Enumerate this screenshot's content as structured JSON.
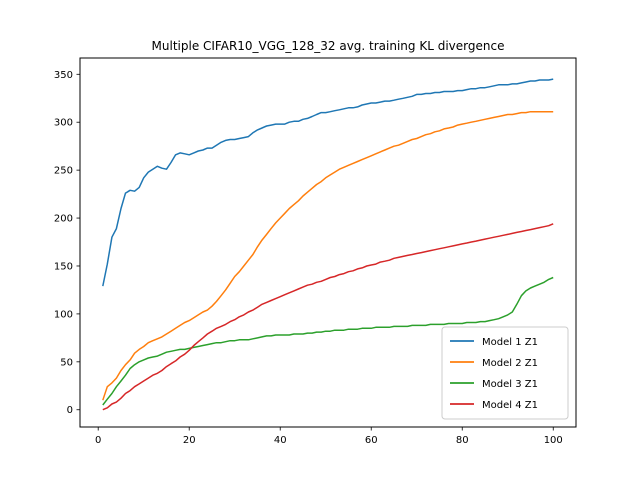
{
  "chart_data": {
    "type": "line",
    "title": "Multiple CIFAR10_VGG_128_32 avg. training KL divergence",
    "xlabel": "",
    "ylabel": "",
    "xlim": [
      -4,
      105
    ],
    "ylim": [
      -18,
      367
    ],
    "xticks": [
      0,
      20,
      40,
      60,
      80,
      100
    ],
    "yticks": [
      0,
      50,
      100,
      150,
      200,
      250,
      300,
      350
    ],
    "grid": false,
    "legend_position": "lower right",
    "series": [
      {
        "name": "Model 1 Z1",
        "color": "#1f77b4",
        "x": [
          1,
          2,
          3,
          4,
          5,
          6,
          7,
          8,
          9,
          10,
          11,
          12,
          13,
          14,
          15,
          16,
          17,
          18,
          19,
          20,
          21,
          22,
          23,
          24,
          25,
          26,
          27,
          28,
          29,
          30,
          31,
          32,
          33,
          34,
          35,
          36,
          37,
          38,
          39,
          40,
          41,
          42,
          43,
          44,
          45,
          46,
          47,
          48,
          49,
          50,
          51,
          52,
          53,
          54,
          55,
          56,
          57,
          58,
          59,
          60,
          61,
          62,
          63,
          64,
          65,
          66,
          67,
          68,
          69,
          70,
          71,
          72,
          73,
          74,
          75,
          76,
          77,
          78,
          79,
          80,
          81,
          82,
          83,
          84,
          85,
          86,
          87,
          88,
          89,
          90,
          91,
          92,
          93,
          94,
          95,
          96,
          97,
          98,
          99,
          100
        ],
        "values": [
          129,
          152,
          180,
          189,
          210,
          226,
          229,
          228,
          232,
          242,
          248,
          251,
          254,
          252,
          251,
          258,
          266,
          268,
          267,
          266,
          268,
          270,
          271,
          273,
          273,
          276,
          279,
          281,
          282,
          282,
          283,
          284,
          285,
          289,
          292,
          294,
          296,
          297,
          298,
          298,
          298,
          300,
          301,
          301,
          303,
          304,
          306,
          308,
          310,
          310,
          311,
          312,
          313,
          314,
          315,
          315,
          316,
          318,
          319,
          320,
          320,
          321,
          322,
          322,
          323,
          324,
          325,
          326,
          327,
          329,
          329,
          330,
          330,
          331,
          331,
          332,
          332,
          332,
          333,
          333,
          334,
          335,
          335,
          336,
          336,
          337,
          338,
          339,
          339,
          339,
          340,
          340,
          341,
          342,
          343,
          343,
          344,
          344,
          344,
          345
        ]
      },
      {
        "name": "Model 2 Z1",
        "color": "#ff7f0e",
        "x": [
          1,
          2,
          3,
          4,
          5,
          6,
          7,
          8,
          9,
          10,
          11,
          12,
          13,
          14,
          15,
          16,
          17,
          18,
          19,
          20,
          21,
          22,
          23,
          24,
          25,
          26,
          27,
          28,
          29,
          30,
          31,
          32,
          33,
          34,
          35,
          36,
          37,
          38,
          39,
          40,
          41,
          42,
          43,
          44,
          45,
          46,
          47,
          48,
          49,
          50,
          51,
          52,
          53,
          54,
          55,
          56,
          57,
          58,
          59,
          60,
          61,
          62,
          63,
          64,
          65,
          66,
          67,
          68,
          69,
          70,
          71,
          72,
          73,
          74,
          75,
          76,
          77,
          78,
          79,
          80,
          81,
          82,
          83,
          84,
          85,
          86,
          87,
          88,
          89,
          90,
          91,
          92,
          93,
          94,
          95,
          96,
          97,
          98,
          99,
          100
        ],
        "values": [
          10,
          24,
          28,
          33,
          41,
          47,
          52,
          59,
          63,
          66,
          70,
          72,
          74,
          76,
          79,
          82,
          85,
          88,
          91,
          93,
          96,
          99,
          102,
          104,
          108,
          113,
          119,
          125,
          132,
          139,
          144,
          150,
          156,
          162,
          170,
          177,
          183,
          189,
          195,
          200,
          205,
          210,
          214,
          218,
          223,
          227,
          231,
          235,
          238,
          242,
          245,
          248,
          251,
          253,
          255,
          257,
          259,
          261,
          263,
          265,
          267,
          269,
          271,
          273,
          275,
          276,
          278,
          280,
          282,
          283,
          285,
          287,
          288,
          290,
          291,
          293,
          294,
          295,
          297,
          298,
          299,
          300,
          301,
          302,
          303,
          304,
          305,
          306,
          307,
          308,
          308,
          309,
          310,
          310,
          311,
          311,
          311,
          311,
          311,
          311
        ]
      },
      {
        "name": "Model 3 Z1",
        "color": "#2ca02c",
        "x": [
          1,
          2,
          3,
          4,
          5,
          6,
          7,
          8,
          9,
          10,
          11,
          12,
          13,
          14,
          15,
          16,
          17,
          18,
          19,
          20,
          21,
          22,
          23,
          24,
          25,
          26,
          27,
          28,
          29,
          30,
          31,
          32,
          33,
          34,
          35,
          36,
          37,
          38,
          39,
          40,
          41,
          42,
          43,
          44,
          45,
          46,
          47,
          48,
          49,
          50,
          51,
          52,
          53,
          54,
          55,
          56,
          57,
          58,
          59,
          60,
          61,
          62,
          63,
          64,
          65,
          66,
          67,
          68,
          69,
          70,
          71,
          72,
          73,
          74,
          75,
          76,
          77,
          78,
          79,
          80,
          81,
          82,
          83,
          84,
          85,
          86,
          87,
          88,
          89,
          90,
          91,
          92,
          93,
          94,
          95,
          96,
          97,
          98,
          99,
          100
        ],
        "values": [
          5,
          11,
          17,
          24,
          30,
          36,
          43,
          47,
          50,
          52,
          54,
          55,
          56,
          58,
          60,
          61,
          62,
          63,
          63,
          64,
          65,
          66,
          67,
          68,
          69,
          70,
          70,
          71,
          72,
          72,
          73,
          73,
          73,
          74,
          75,
          76,
          77,
          77,
          78,
          78,
          78,
          78,
          79,
          79,
          79,
          80,
          80,
          81,
          81,
          82,
          82,
          83,
          83,
          83,
          84,
          84,
          84,
          85,
          85,
          85,
          86,
          86,
          86,
          86,
          87,
          87,
          87,
          87,
          88,
          88,
          88,
          88,
          89,
          89,
          89,
          89,
          90,
          90,
          90,
          90,
          91,
          91,
          91,
          92,
          92,
          93,
          94,
          95,
          97,
          99,
          102,
          110,
          119,
          124,
          127,
          129,
          131,
          133,
          136,
          138
        ]
      },
      {
        "name": "Model 4 Z1",
        "color": "#d62728",
        "x": [
          1,
          2,
          3,
          4,
          5,
          6,
          7,
          8,
          9,
          10,
          11,
          12,
          13,
          14,
          15,
          16,
          17,
          18,
          19,
          20,
          21,
          22,
          23,
          24,
          25,
          26,
          27,
          28,
          29,
          30,
          31,
          32,
          33,
          34,
          35,
          36,
          37,
          38,
          39,
          40,
          41,
          42,
          43,
          44,
          45,
          46,
          47,
          48,
          49,
          50,
          51,
          52,
          53,
          54,
          55,
          56,
          57,
          58,
          59,
          60,
          61,
          62,
          63,
          64,
          65,
          66,
          67,
          68,
          69,
          70,
          71,
          72,
          73,
          74,
          75,
          76,
          77,
          78,
          79,
          80,
          81,
          82,
          83,
          84,
          85,
          86,
          87,
          88,
          89,
          90,
          91,
          92,
          93,
          94,
          95,
          96,
          97,
          98,
          99,
          100
        ],
        "values": [
          0,
          2,
          6,
          8,
          12,
          17,
          20,
          24,
          27,
          30,
          33,
          36,
          38,
          41,
          45,
          48,
          51,
          55,
          58,
          62,
          67,
          71,
          75,
          79,
          82,
          85,
          87,
          89,
          92,
          94,
          97,
          99,
          102,
          104,
          107,
          110,
          112,
          114,
          116,
          118,
          120,
          122,
          124,
          126,
          128,
          130,
          131,
          133,
          134,
          136,
          138,
          139,
          141,
          142,
          144,
          145,
          147,
          148,
          150,
          151,
          152,
          154,
          155,
          156,
          158,
          159,
          160,
          161,
          162,
          163,
          164,
          165,
          166,
          167,
          168,
          169,
          170,
          171,
          172,
          173,
          174,
          175,
          176,
          177,
          178,
          179,
          180,
          181,
          182,
          183,
          184,
          185,
          186,
          187,
          188,
          189,
          190,
          191,
          192,
          194
        ]
      }
    ]
  }
}
